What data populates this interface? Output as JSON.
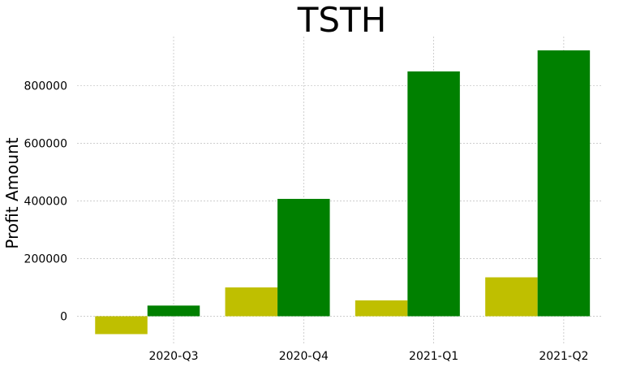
{
  "chart_data": {
    "type": "bar",
    "title": "TSTH",
    "xlabel": "",
    "ylabel": "Profit Amount",
    "categories": [
      "2020-Q3",
      "2020-Q4",
      "2021-Q1",
      "2021-Q2"
    ],
    "series": [
      {
        "color": "#bfbf00",
        "values": [
          -62000,
          100000,
          55000,
          135000
        ]
      },
      {
        "color": "#008000",
        "values": [
          37000,
          407000,
          849000,
          922000
        ]
      }
    ],
    "yticks": [
      0,
      200000,
      400000,
      600000,
      800000
    ],
    "ytick_labels": [
      "0",
      "200000",
      "400000",
      "600000",
      "800000"
    ],
    "ylim": [
      -100000,
      970000
    ],
    "grid": true,
    "legend": "none"
  }
}
